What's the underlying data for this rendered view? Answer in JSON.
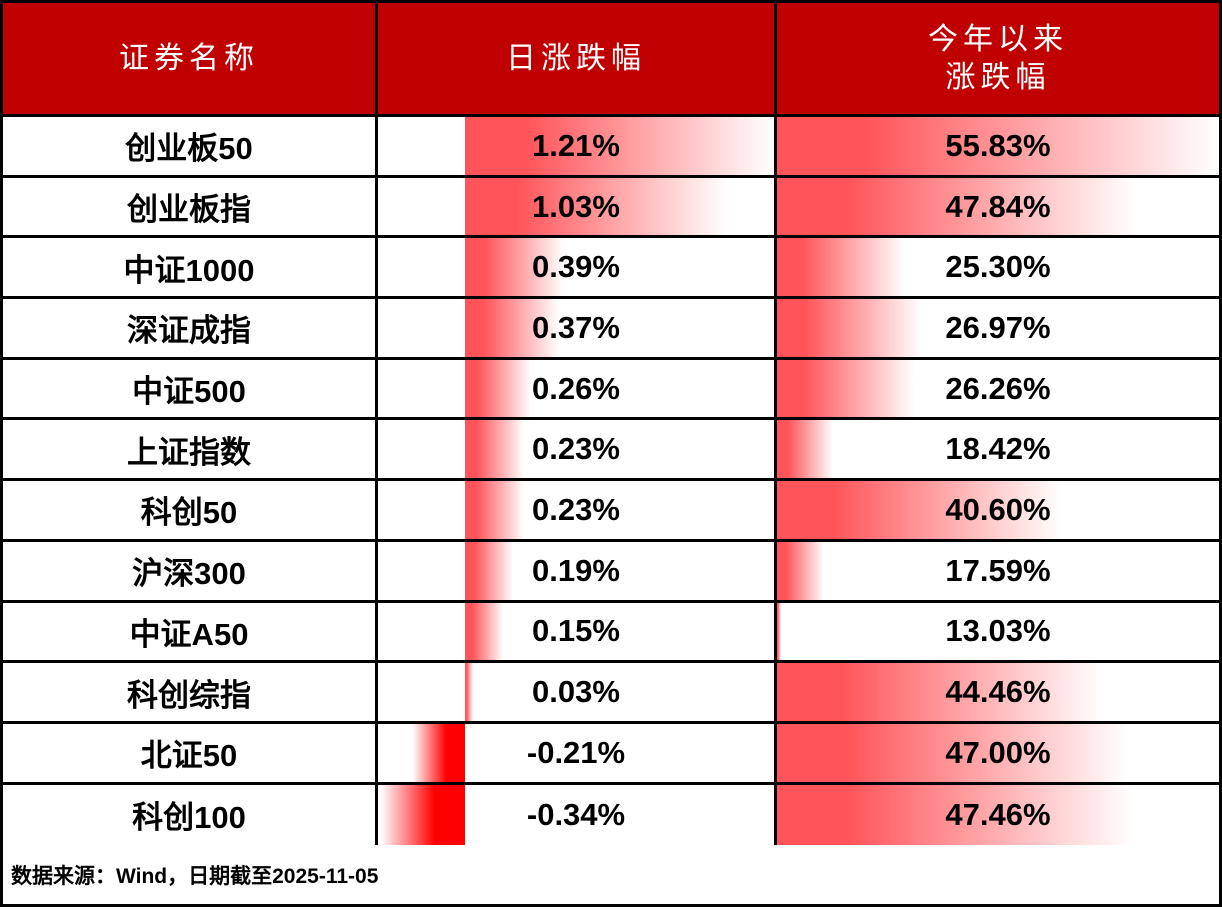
{
  "header": {
    "col_name": "证券名称",
    "col_daily": "日涨跌幅",
    "col_ytd_line1": "今年以来",
    "col_ytd_line2": "涨跌幅"
  },
  "footer": {
    "source_note": "数据来源：Wind，日期截至2025-11-05"
  },
  "colors": {
    "header_bg": "#C00000",
    "header_text": "#FFFFFF",
    "positive_bar": "#FF555A",
    "negative_bar": "#FF0000",
    "border": "#000000",
    "row_bg": "#FFFFFF",
    "value_text": "#000000"
  },
  "chart_data": {
    "type": "table",
    "title": "",
    "columns": [
      "证券名称",
      "日涨跌幅",
      "今年以来涨跌幅"
    ],
    "bar_style": "excel-gradient-data-bars",
    "daily_axis": {
      "min": -0.34,
      "max": 1.21
    },
    "ytd_axis": {
      "min": 13.03,
      "max": 55.83
    },
    "rows": [
      {
        "name": "创业板50",
        "daily": 1.21,
        "daily_label": "1.21%",
        "ytd": 55.83,
        "ytd_label": "55.83%"
      },
      {
        "name": "创业板指",
        "daily": 1.03,
        "daily_label": "1.03%",
        "ytd": 47.84,
        "ytd_label": "47.84%"
      },
      {
        "name": "中证1000",
        "daily": 0.39,
        "daily_label": "0.39%",
        "ytd": 25.3,
        "ytd_label": "25.30%"
      },
      {
        "name": "深证成指",
        "daily": 0.37,
        "daily_label": "0.37%",
        "ytd": 26.97,
        "ytd_label": "26.97%"
      },
      {
        "name": "中证500",
        "daily": 0.26,
        "daily_label": "0.26%",
        "ytd": 26.26,
        "ytd_label": "26.26%"
      },
      {
        "name": "上证指数",
        "daily": 0.23,
        "daily_label": "0.23%",
        "ytd": 18.42,
        "ytd_label": "18.42%"
      },
      {
        "name": "科创50",
        "daily": 0.23,
        "daily_label": "0.23%",
        "ytd": 40.6,
        "ytd_label": "40.60%"
      },
      {
        "name": "沪深300",
        "daily": 0.19,
        "daily_label": "0.19%",
        "ytd": 17.59,
        "ytd_label": "17.59%"
      },
      {
        "name": "中证A50",
        "daily": 0.15,
        "daily_label": "0.15%",
        "ytd": 13.03,
        "ytd_label": "13.03%"
      },
      {
        "name": "科创综指",
        "daily": 0.03,
        "daily_label": "0.03%",
        "ytd": 44.46,
        "ytd_label": "44.46%"
      },
      {
        "name": "北证50",
        "daily": -0.21,
        "daily_label": "-0.21%",
        "ytd": 47.0,
        "ytd_label": "47.00%"
      },
      {
        "name": "科创100",
        "daily": -0.34,
        "daily_label": "-0.34%",
        "ytd": 47.46,
        "ytd_label": "47.46%"
      }
    ]
  }
}
